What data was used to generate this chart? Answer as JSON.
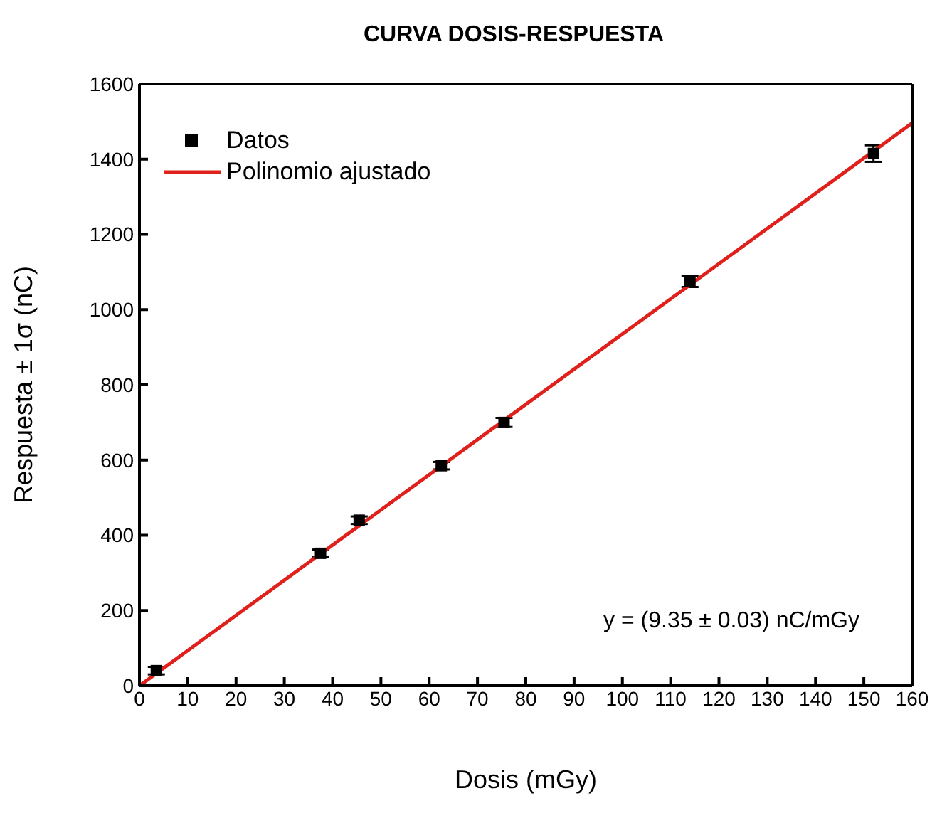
{
  "chart_data": {
    "type": "scatter",
    "title": "CURVA DOSIS-RESPUESTA",
    "xlabel": "Dosis (mGy)",
    "ylabel": "Respuesta ± 1σ (nC)",
    "xlim": [
      0,
      160
    ],
    "xticks": [
      0,
      10,
      20,
      30,
      40,
      50,
      60,
      70,
      80,
      90,
      100,
      110,
      120,
      130,
      140,
      150,
      160
    ],
    "ylim": [
      0,
      1600
    ],
    "yticks": [
      0,
      200,
      400,
      600,
      800,
      1000,
      1200,
      1400,
      1600
    ],
    "grid": false,
    "legend": "top left",
    "marker": "square",
    "series": [
      {
        "name": "Datos",
        "color": "#000000",
        "x": [
          3.5,
          37.5,
          45.5,
          62.5,
          75.5,
          114,
          152
        ],
        "values": [
          40,
          352,
          440,
          585,
          700,
          1075,
          1415
        ],
        "errors": [
          10,
          10,
          10,
          10,
          12,
          15,
          22
        ]
      },
      {
        "name": "Polinomio ajustado",
        "type": "line",
        "color": "#e0201b",
        "line_style": "solid",
        "marker": "none",
        "x": [
          0,
          160
        ],
        "values": [
          0,
          1496
        ]
      }
    ],
    "annotations": [
      "y = (9.35 ± 0.03) nC/mGy"
    ]
  }
}
